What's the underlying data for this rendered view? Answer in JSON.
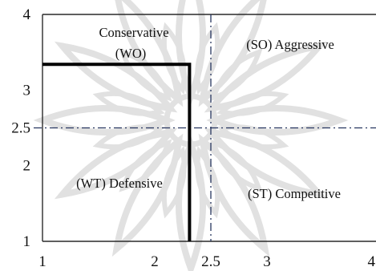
{
  "chart_data": {
    "type": "scatter",
    "title": "",
    "xlabel": "",
    "ylabel": "",
    "xlim": [
      1,
      4
    ],
    "ylim": [
      1,
      4
    ],
    "x_ticks": [
      1,
      2,
      2.5,
      3,
      4
    ],
    "y_ticks": [
      4,
      3,
      2.5,
      2,
      1
    ],
    "grid": false,
    "dividers": {
      "x": 2.5,
      "y": 2.5
    },
    "point": {
      "x": 2.31,
      "y": 3.34
    },
    "quadrant_labels": {
      "top_left": [
        "Conservative",
        "(WO)"
      ],
      "top_right": "(SO) Aggressive",
      "bottom_left": "(WT) Defensive",
      "bottom_right": "(ST) Competitive"
    },
    "colors": {
      "dividers": "#26355f",
      "position_line": "#000000",
      "frame": "#2a2a2a",
      "watermark": "#e1e1e1"
    }
  }
}
